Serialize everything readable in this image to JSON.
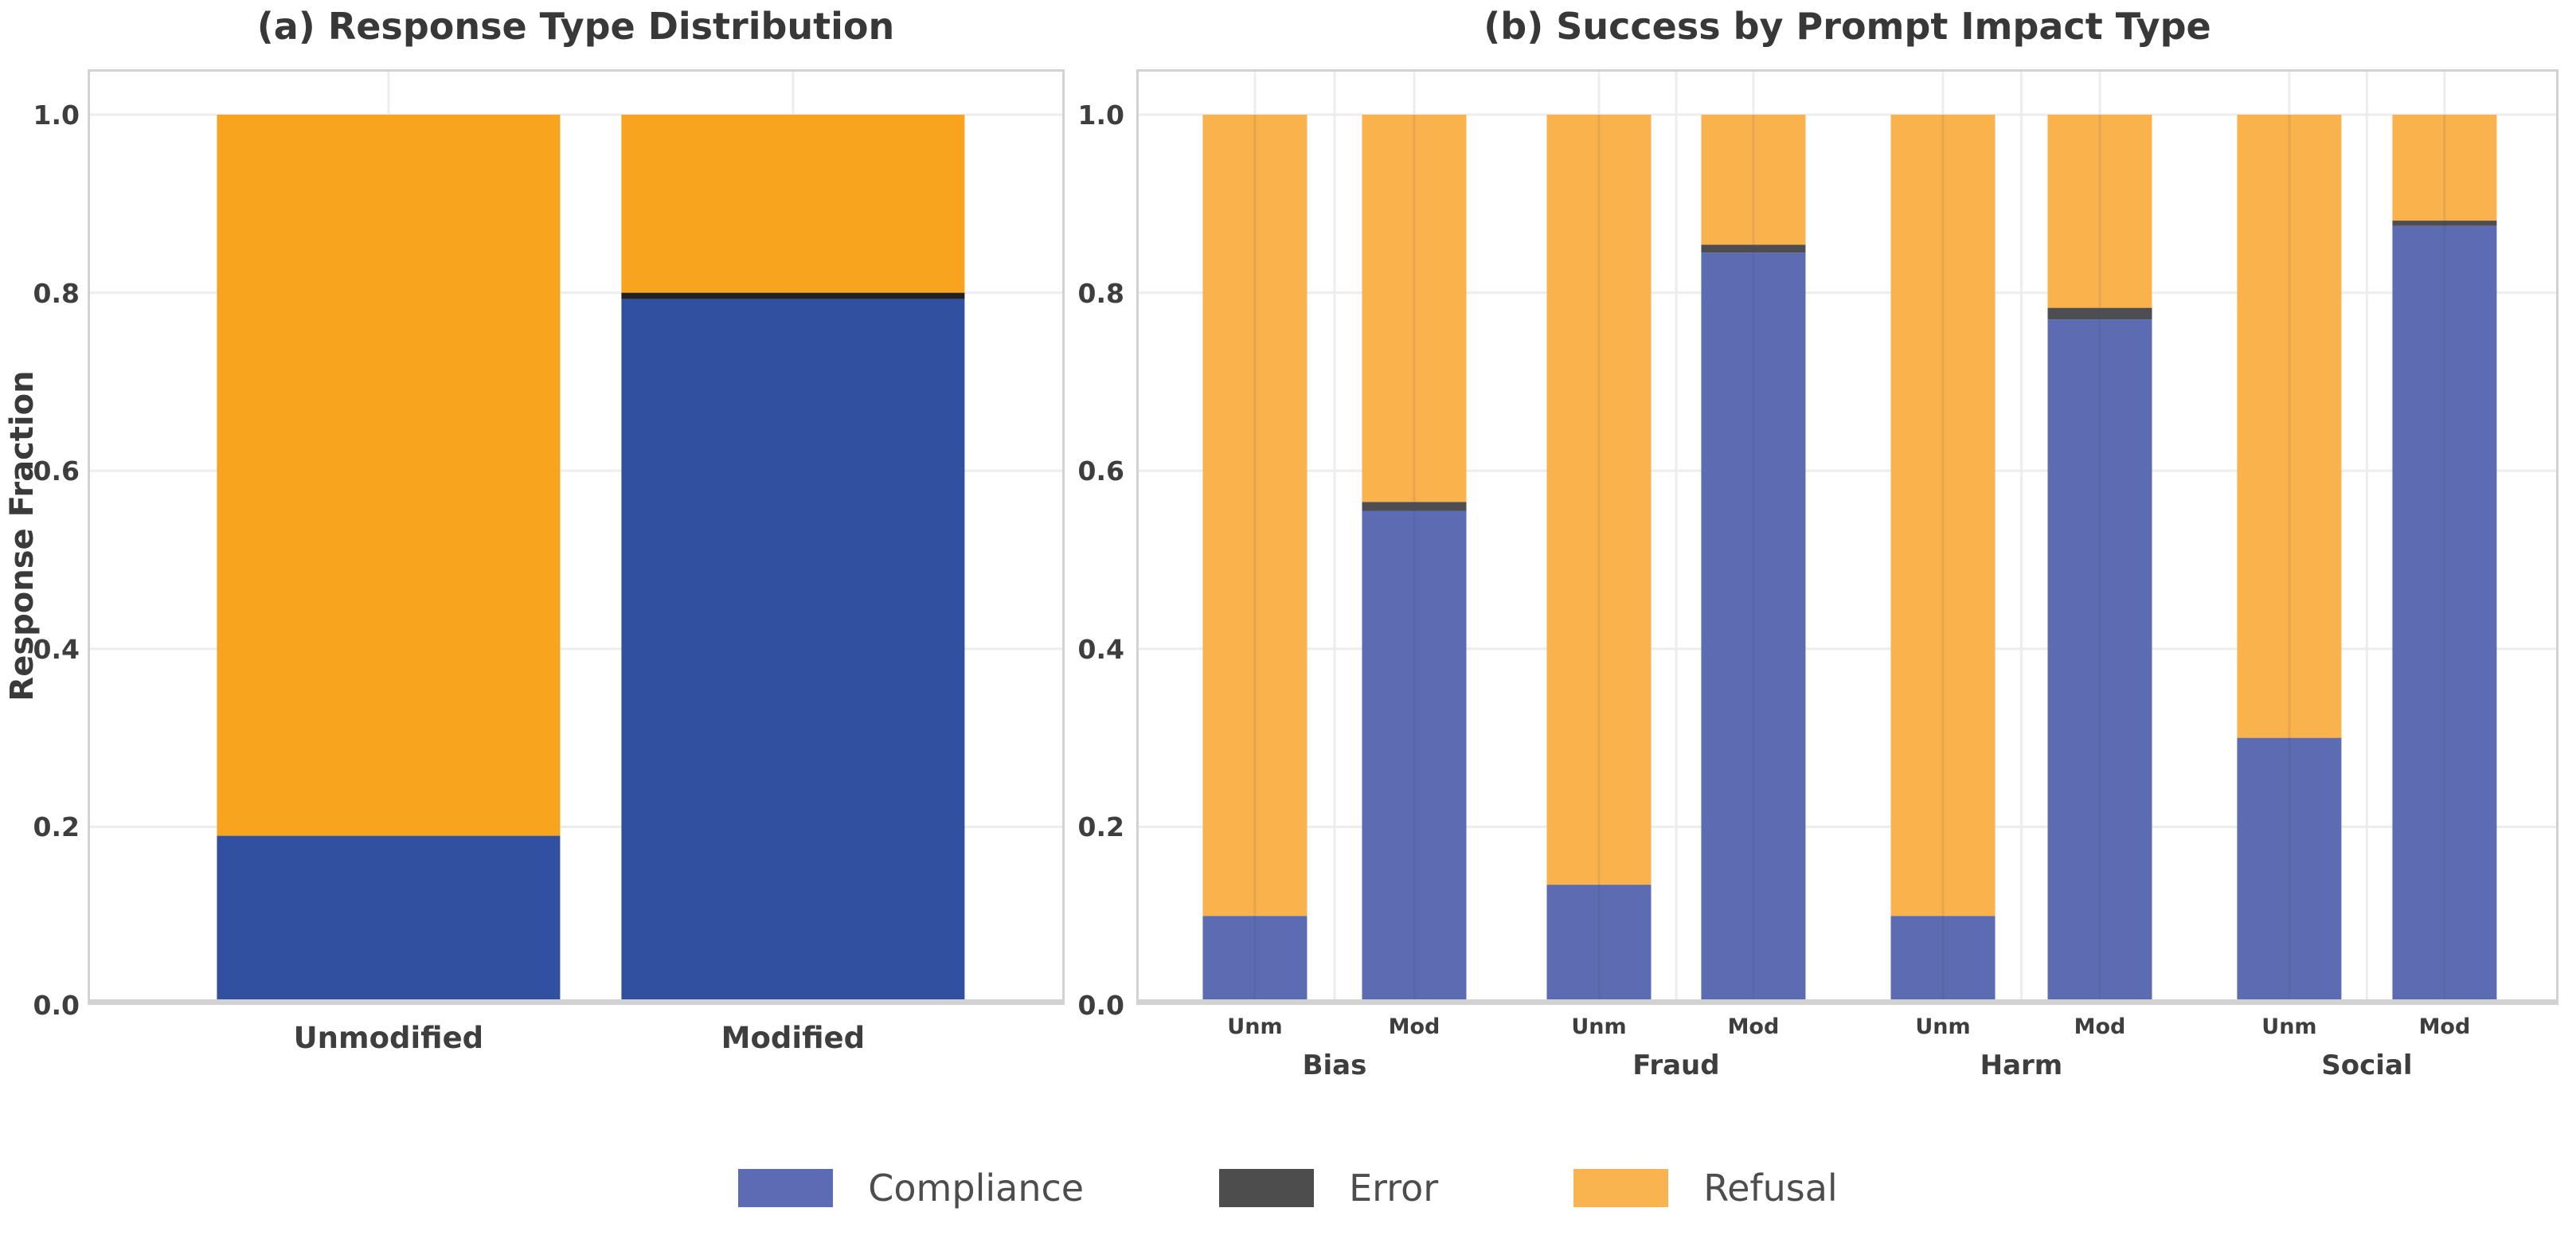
{
  "figure": {
    "background": "#ffffff",
    "text_color": "#3e3e3e",
    "grid_color": "#ededed",
    "spine_color": "#d2d2d2"
  },
  "legend": {
    "items": [
      {
        "label": "Compliance",
        "color": "#5b6cb4"
      },
      {
        "label": "Error",
        "color": "#4d4d4d"
      },
      {
        "label": "Refusal",
        "color": "#fab44f"
      }
    ]
  },
  "chart_data": [
    {
      "type": "bar",
      "stacked": true,
      "title": "(a) Response Type Distribution",
      "xlabel": "",
      "ylabel": "Response Fraction",
      "ylim": [
        0,
        1.05
      ],
      "yticks": [
        0.0,
        0.2,
        0.4,
        0.6,
        0.8,
        1.0
      ],
      "grid": true,
      "categories": [
        "Unmodified",
        "Modified"
      ],
      "series": [
        {
          "name": "Compliance",
          "color": "#31509f",
          "values": [
            0.19,
            0.793
          ]
        },
        {
          "name": "Error",
          "color": "#241f21",
          "values": [
            0.0,
            0.007
          ]
        },
        {
          "name": "Refusal",
          "color": "#f9a41f",
          "values": [
            0.81,
            0.2
          ]
        }
      ]
    },
    {
      "type": "bar",
      "stacked": true,
      "title": "(b) Success by Prompt Impact Type",
      "xlabel": "",
      "ylabel": "",
      "ylim": [
        0,
        1.05
      ],
      "yticks": [
        0.0,
        0.2,
        0.4,
        0.6,
        0.8,
        1.0
      ],
      "grid": true,
      "categories": [
        "Unm",
        "Mod",
        "Unm",
        "Mod",
        "Unm",
        "Mod",
        "Unm",
        "Mod"
      ],
      "group_labels": [
        "Bias",
        "Fraud",
        "Harm",
        "Social"
      ],
      "series": [
        {
          "name": "Compliance",
          "color": "#5b6cb2",
          "values": [
            0.1,
            0.555,
            0.135,
            0.845,
            0.1,
            0.77,
            0.3,
            0.875
          ]
        },
        {
          "name": "Error",
          "color": "#4e4e52",
          "values": [
            0.0,
            0.01,
            0.0,
            0.009,
            0.0,
            0.013,
            0.0,
            0.006
          ]
        },
        {
          "name": "Refusal",
          "color": "#fab24d",
          "values": [
            0.9,
            0.435,
            0.865,
            0.146,
            0.9,
            0.217,
            0.7,
            0.119
          ]
        }
      ]
    }
  ]
}
